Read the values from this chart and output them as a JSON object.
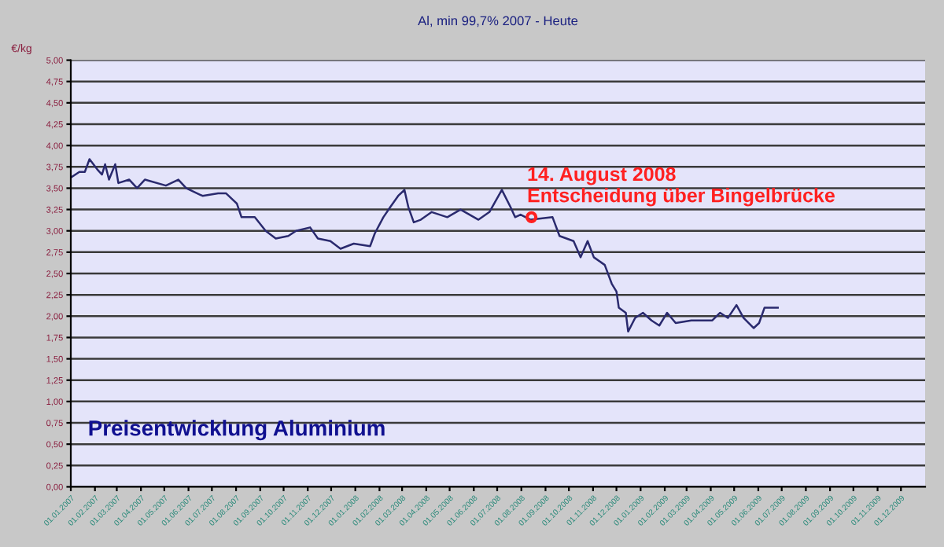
{
  "chart_data": {
    "type": "line",
    "title": "Al, min 99,7% 2007 - Heute",
    "ylabel": "€/kg",
    "annotations": [
      {
        "text": "14. August 2008\nEntscheidung über Bingelbrücke",
        "x": "2008-08-14",
        "y": 3.16
      },
      "Preisentwicklung Aluminium"
    ],
    "x": [
      "2007-01-02",
      "2007-01-12",
      "2007-01-19",
      "2007-01-25",
      "2007-02-04",
      "2007-02-10",
      "2007-02-14",
      "2007-02-19",
      "2007-02-27",
      "2007-03-03",
      "2007-03-17",
      "2007-03-27",
      "2007-04-06",
      "2007-05-03",
      "2007-05-19",
      "2007-05-29",
      "2007-06-19",
      "2007-07-09",
      "2007-07-19",
      "2007-08-02",
      "2007-08-08",
      "2007-08-25",
      "2007-09-08",
      "2007-09-21",
      "2007-10-07",
      "2007-10-17",
      "2007-11-04",
      "2007-11-14",
      "2007-11-30",
      "2007-12-13",
      "2007-12-30",
      "2008-01-20",
      "2008-01-26",
      "2008-02-06",
      "2008-02-15",
      "2008-02-25",
      "2008-03-04",
      "2008-03-09",
      "2008-03-16",
      "2008-03-25",
      "2008-04-08",
      "2008-04-28",
      "2008-05-15",
      "2008-06-07",
      "2008-06-21",
      "2008-07-07",
      "2008-07-18",
      "2008-07-24",
      "2008-07-31",
      "2008-08-13",
      "2008-09-10",
      "2008-09-19",
      "2008-10-07",
      "2008-10-16",
      "2008-10-25",
      "2008-11-02",
      "2008-11-16",
      "2008-11-25",
      "2008-12-01",
      "2008-12-04",
      "2008-12-13",
      "2008-12-16",
      "2008-12-25",
      "2009-01-04",
      "2009-01-15",
      "2009-01-25",
      "2009-02-04",
      "2009-02-15",
      "2009-03-07",
      "2009-04-03",
      "2009-04-13",
      "2009-04-23",
      "2009-05-04",
      "2009-05-13",
      "2009-05-26",
      "2009-06-02",
      "2009-06-09",
      "2009-06-19",
      "2009-06-26"
    ],
    "series": [
      {
        "color": "#2a2a6e",
        "values": [
          3.63,
          3.69,
          3.69,
          3.84,
          3.72,
          3.66,
          3.78,
          3.6,
          3.78,
          3.56,
          3.6,
          3.5,
          3.6,
          3.53,
          3.6,
          3.5,
          3.41,
          3.44,
          3.44,
          3.32,
          3.16,
          3.16,
          3.0,
          2.91,
          2.94,
          3.0,
          3.04,
          2.91,
          2.88,
          2.79,
          2.85,
          2.82,
          2.97,
          3.16,
          3.28,
          3.41,
          3.48,
          3.28,
          3.1,
          3.13,
          3.22,
          3.16,
          3.25,
          3.13,
          3.22,
          3.48,
          3.28,
          3.16,
          3.19,
          3.13,
          3.16,
          2.94,
          2.88,
          2.69,
          2.88,
          2.69,
          2.6,
          2.38,
          2.29,
          2.1,
          2.04,
          1.82,
          1.98,
          2.04,
          1.95,
          1.89,
          2.04,
          1.92,
          1.95,
          1.95,
          2.04,
          1.98,
          2.13,
          1.98,
          1.86,
          1.92,
          2.1,
          2.1,
          2.1
        ]
      }
    ],
    "xlim": [
      "2007-01-01",
      "2010-01-01"
    ],
    "xticks": [
      {
        "value": "2007-01-01",
        "label": "01.01.2007"
      },
      {
        "value": "2007-02-01",
        "label": "01.02.2007"
      },
      {
        "value": "2007-03-01",
        "label": "01.03.2007"
      },
      {
        "value": "2007-04-01",
        "label": "01.04.2007"
      },
      {
        "value": "2007-05-01",
        "label": "01.05.2007"
      },
      {
        "value": "2007-06-01",
        "label": "01.06.2007"
      },
      {
        "value": "2007-07-01",
        "label": "01.07.2007"
      },
      {
        "value": "2007-08-01",
        "label": "01.08.2007"
      },
      {
        "value": "2007-09-01",
        "label": "01.09.2007"
      },
      {
        "value": "2007-10-01",
        "label": "01.10.2007"
      },
      {
        "value": "2007-11-01",
        "label": "01.11.2007"
      },
      {
        "value": "2007-12-01",
        "label": "01.12.2007"
      },
      {
        "value": "2008-01-01",
        "label": "01.01.2008"
      },
      {
        "value": "2008-02-01",
        "label": "01.02.2008"
      },
      {
        "value": "2008-03-01",
        "label": "01.03.2008"
      },
      {
        "value": "2008-04-01",
        "label": "01.04.2008"
      },
      {
        "value": "2008-05-01",
        "label": "01.05.2008"
      },
      {
        "value": "2008-06-01",
        "label": "01.06.2008"
      },
      {
        "value": "2008-07-01",
        "label": "01.07.2008"
      },
      {
        "value": "2008-08-01",
        "label": "01.08.2008"
      },
      {
        "value": "2008-09-01",
        "label": "01.09.2008"
      },
      {
        "value": "2008-10-01",
        "label": "01.10.2008"
      },
      {
        "value": "2008-11-01",
        "label": "01.11.2008"
      },
      {
        "value": "2008-12-01",
        "label": "01.12.2008"
      },
      {
        "value": "2009-01-01",
        "label": "01.01.2009"
      },
      {
        "value": "2009-02-01",
        "label": "01.02.2009"
      },
      {
        "value": "2009-03-01",
        "label": "01.03.2009"
      },
      {
        "value": "2009-04-01",
        "label": "01.04.2009"
      },
      {
        "value": "2009-05-01",
        "label": "01.05.2009"
      },
      {
        "value": "2009-06-01",
        "label": "01.06.2009"
      },
      {
        "value": "2009-07-01",
        "label": "01.07.2009"
      },
      {
        "value": "2009-08-01",
        "label": "01.08.2009"
      },
      {
        "value": "2009-09-01",
        "label": "01.09.2009"
      },
      {
        "value": "2009-10-01",
        "label": "01.10.2009"
      },
      {
        "value": "2009-11-01",
        "label": "01.11.2009"
      },
      {
        "value": "2009-12-01",
        "label": "01.12.2009"
      }
    ],
    "ylim": [
      0,
      5
    ],
    "yticks": [
      {
        "value": 0,
        "label": "0,00"
      },
      {
        "value": 0.25,
        "label": "0,25"
      },
      {
        "value": 0.5,
        "label": "0,50"
      },
      {
        "value": 0.75,
        "label": "0,75"
      },
      {
        "value": 1,
        "label": "1,00"
      },
      {
        "value": 1.25,
        "label": "1,25"
      },
      {
        "value": 1.5,
        "label": "1,50"
      },
      {
        "value": 1.75,
        "label": "1,75"
      },
      {
        "value": 2,
        "label": "2,00"
      },
      {
        "value": 2.25,
        "label": "2,25"
      },
      {
        "value": 2.5,
        "label": "2,50"
      },
      {
        "value": 2.75,
        "label": "2,75"
      },
      {
        "value": 3,
        "label": "3,00"
      },
      {
        "value": 3.25,
        "label": "3,25"
      },
      {
        "value": 3.5,
        "label": "3,50"
      },
      {
        "value": 3.75,
        "label": "3,75"
      },
      {
        "value": 4,
        "label": "4,00"
      },
      {
        "value": 4.25,
        "label": "4,25"
      },
      {
        "value": 4.5,
        "label": "4,50"
      },
      {
        "value": 4.75,
        "label": "4,75"
      },
      {
        "value": 5,
        "label": "5,00"
      }
    ],
    "grid": "y",
    "marker": "none",
    "line_style": "solid",
    "legend": false
  }
}
